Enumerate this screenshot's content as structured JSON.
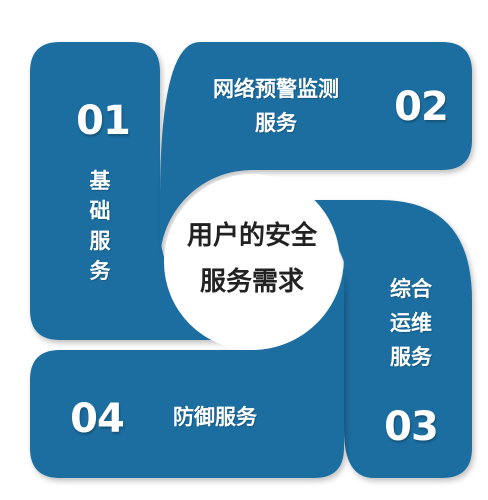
{
  "colors": {
    "panel": "#1f6ea1",
    "panel_dark": "#174f78",
    "center_circle": "#ffffff",
    "text_light": "#ffffff",
    "text_dark": "#222222"
  },
  "center": {
    "line1": "用户的安全",
    "line2": "服务需求"
  },
  "panels": {
    "p01": {
      "number": "01",
      "label": "基础服务"
    },
    "p02": {
      "number": "02",
      "label_line1": "网络预警监测",
      "label_line2": "服务"
    },
    "p03": {
      "number": "03",
      "label_line1": "综合",
      "label_line2": "运维",
      "label_line3": "服务"
    },
    "p04": {
      "number": "04",
      "label": "防御服务"
    }
  }
}
